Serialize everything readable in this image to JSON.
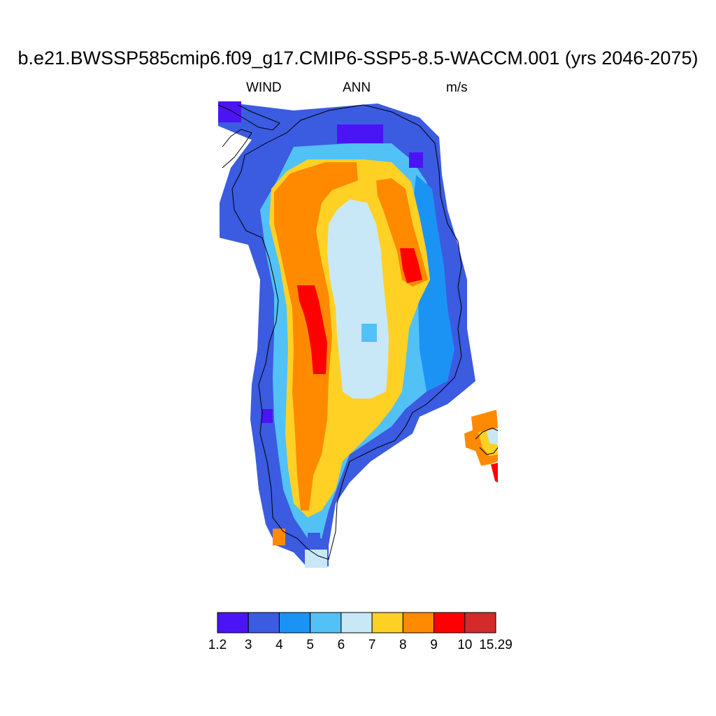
{
  "title": "b.e21.BWSSP585cmip6.f09_g17.CMIP6-SSP5-8.5-WACCM.001 (yrs 2046-2075)",
  "subtitle": {
    "left": "WIND",
    "center": "ANN",
    "right": "m/s"
  },
  "colorbar": {
    "ticks": [
      "1.2",
      "3",
      "4",
      "5",
      "6",
      "7",
      "8",
      "9",
      "10",
      "15.29"
    ],
    "colors": [
      "#4a14f5",
      "#3b5be0",
      "#1b93f5",
      "#52c1f5",
      "#c8e8f8",
      "#ffd125",
      "#ff8a00",
      "#ff0000",
      "#d42a2a"
    ]
  },
  "map": {
    "region": "Greenland",
    "variable": "WIND",
    "units": "m/s",
    "bands": [
      {
        "level": "6-7 m/s interior core"
      },
      {
        "level": "7-8 m/s"
      },
      {
        "level": "8-9 m/s"
      },
      {
        "level": "9-10 m/s maxima"
      },
      {
        "level": "4-6 m/s coastal margin"
      },
      {
        "level": "1.2-4 m/s outer coast"
      }
    ]
  }
}
